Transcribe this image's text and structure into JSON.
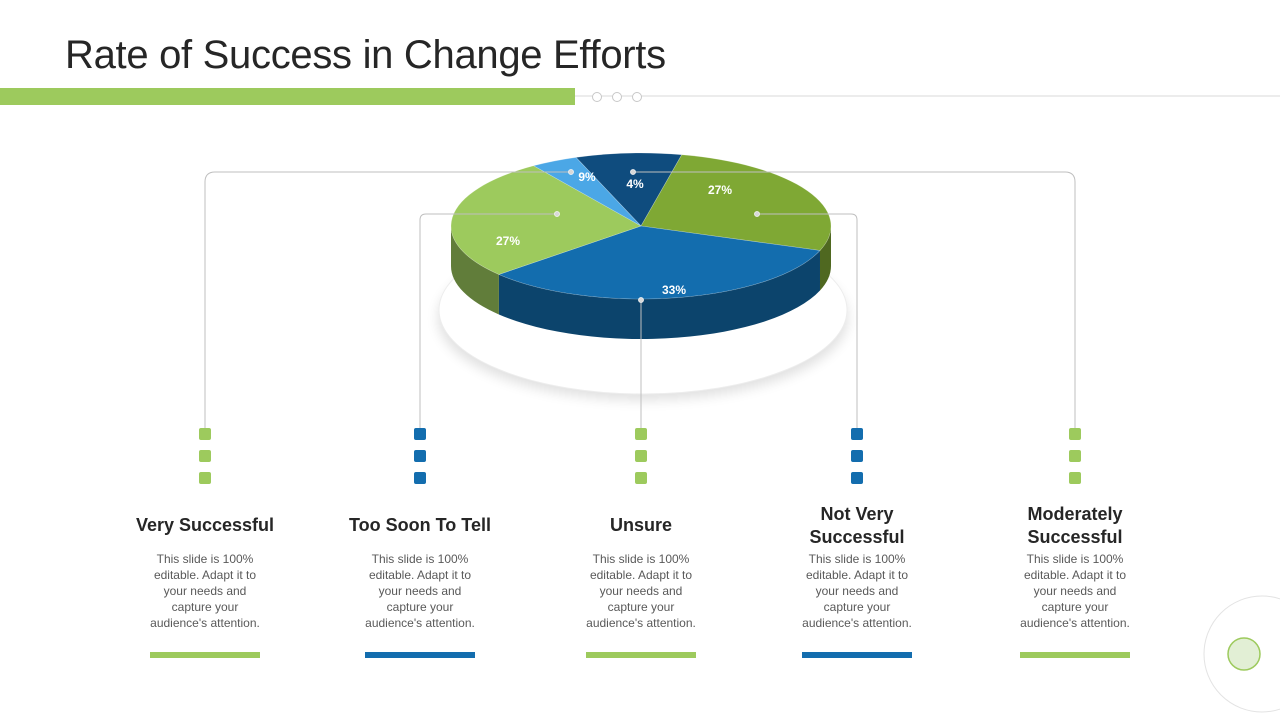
{
  "title": "Rate of Success in Change Efforts",
  "description": "This slide is 100% editable. Adapt it to your needs and capture your audience's attention.",
  "colors": {
    "light_green": "#9DCA5D",
    "dark_green": "#7FA834",
    "mid_blue": "#136DAE",
    "navy": "#0F4C7E",
    "sky_blue": "#4BA7E6"
  },
  "chart_data": {
    "type": "pie",
    "title": "",
    "slices": [
      {
        "label": "Very Successful",
        "value": 9,
        "display": "9%",
        "color": "#0F4C7E"
      },
      {
        "label": "Too Soon To Tell",
        "value": 27,
        "display": "27%",
        "color": "#7FA834"
      },
      {
        "label": "Unsure",
        "value": 33,
        "display": "33%",
        "color": "#136DAE"
      },
      {
        "label": "Not Very Successful",
        "value": 27,
        "display": "27%",
        "color": "#9DCA5D"
      },
      {
        "label": "Moderately Successful",
        "value": 4,
        "display": "4%",
        "color": "#4BA7E6"
      }
    ]
  },
  "items": [
    {
      "label": "Very Successful",
      "accent": "#9DCA5D"
    },
    {
      "label": "Too Soon To Tell",
      "accent": "#136DAE"
    },
    {
      "label": "Unsure",
      "accent": "#9DCA5D"
    },
    {
      "label": "Not Very Successful",
      "accent": "#136DAE"
    },
    {
      "label": "Moderately Successful",
      "accent": "#9DCA5D"
    }
  ]
}
